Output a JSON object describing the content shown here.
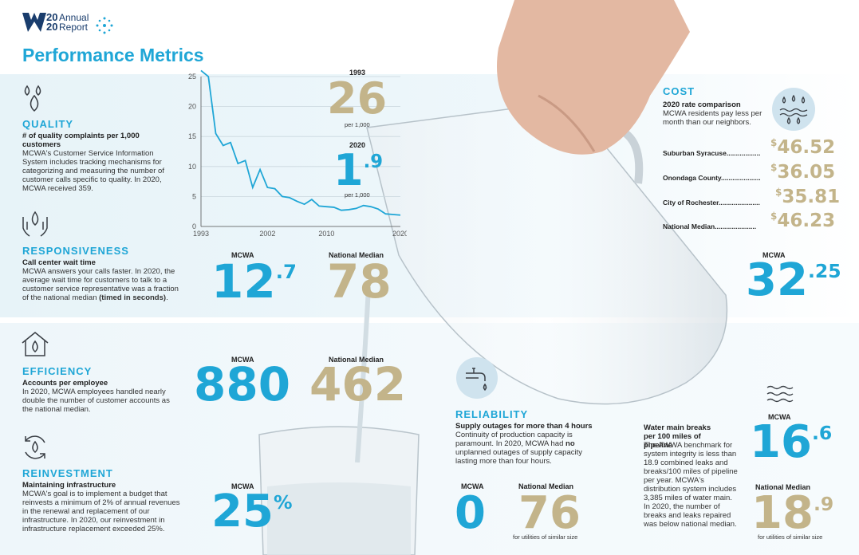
{
  "header": {
    "logo_year": "20\n20",
    "logo_text": "Annual\nReport",
    "title": "Performance Metrics"
  },
  "quality": {
    "heading": "QUALITY",
    "subheading": "# of quality complaints per 1,000 customers",
    "body": "MCWA's Customer Service Information System includes tracking mechanisms for categorizing and measuring the number of customer calls specific to quality. In 2020, MCWA received 359.",
    "year1": "1993",
    "value1": "26",
    "unit1": "per 1,000",
    "year2": "2020",
    "value2_int": "1",
    "value2_dec": ".9",
    "unit2": "per 1,000"
  },
  "responsiveness": {
    "heading": "RESPONSIVENESS",
    "subheading": "Call center wait time",
    "body_prefix": "MCWA answers your calls faster. In 2020, the average wait time for customers to talk to a customer service representative was a fraction of the national median ",
    "body_bold": "(timed in seconds)",
    "body_suffix": ".",
    "mcwa_label": "MCWA",
    "mcwa_int": "12",
    "mcwa_dec": ".7",
    "median_label": "National Median",
    "median_value": "78"
  },
  "efficiency": {
    "heading": "EFFICIENCY",
    "subheading": "Accounts per employee",
    "body": "In 2020, MCWA employees handled nearly double the number of customer accounts as the national median.",
    "mcwa_label": "MCWA",
    "mcwa_value": "880",
    "median_label": "National Median",
    "median_value": "462"
  },
  "reinvestment": {
    "heading": "REINVESTMENT",
    "subheading": "Maintaining infrastructure",
    "body": "MCWA's goal is to implement a budget that reinvests a minimum of 2% of annual revenues in the renewal and replacement of our infrastructure. In 2020, our reinvestment in infrastructure replacement exceeded 25%.",
    "mcwa_label": "MCWA",
    "mcwa_value": "25",
    "mcwa_pct": "%"
  },
  "reliability": {
    "heading": "RELIABILITY",
    "subheading": "Supply outages for more than 4 hours",
    "body_prefix": "Continuity of production capacity is paramount. In 2020, MCWA had ",
    "body_bold": "no",
    "body_suffix": " unplanned outages of supply capacity lasting more than four hours.",
    "mcwa_label": "MCWA",
    "mcwa_value": "0",
    "median_label": "National Median",
    "median_value": "76",
    "median_note": "for utilities of similar size"
  },
  "cost": {
    "heading": "COST",
    "subheading": "2020 rate comparison",
    "body": "MCWA residents pay less per month than our neighbors.",
    "rows": [
      {
        "name": "Suburban Syracuse",
        "dollar": "$",
        "value": "46.52"
      },
      {
        "name": "Onondaga County",
        "dollar": "$",
        "value": "36.05"
      },
      {
        "name": "City of Rochester",
        "dollar": "$",
        "value": "35.81"
      },
      {
        "name": "National Median",
        "dollar": "$",
        "value": "46.23"
      }
    ],
    "mcwa_label": "MCWA",
    "mcwa_int": "32",
    "mcwa_dec": ".25"
  },
  "mains": {
    "subheading": "Water main breaks per 100 miles of pipeline",
    "body": "The AWWA benchmark for system integrity is less than 18.9 combined leaks and breaks/100 miles of pipeline per year. MCWA's distribution system includes 3,385 miles of water main. In 2020, the number of breaks and leaks repaired was below national median.",
    "mcwa_label": "MCWA",
    "mcwa_int": "16",
    "mcwa_dec": ".6",
    "median_label": "National Median",
    "median_int": "18",
    "median_dec": ".9",
    "median_note": "for utilities of similar size"
  },
  "colors": {
    "accent_blue": "#1fa6d6",
    "gold": "#c3b48a",
    "navy": "#1a3d6d"
  },
  "chart_data": {
    "type": "line",
    "title": "",
    "xlabel": "",
    "ylabel": "",
    "xlim": [
      1993,
      2020
    ],
    "ylim": [
      0,
      25
    ],
    "xticks": [
      "1993",
      "2002",
      "2010",
      "2020"
    ],
    "yticks": [
      "0",
      "5",
      "10",
      "15",
      "20",
      "25"
    ],
    "grid": true,
    "series": [
      {
        "x": [
          1993,
          1994,
          1995,
          1996,
          1997,
          1998,
          1999,
          2000,
          2001,
          2002,
          2003,
          2004,
          2005,
          2006,
          2007,
          2008,
          2009,
          2010,
          2011,
          2012,
          2013,
          2014,
          2015,
          2016,
          2017,
          2018,
          2019,
          2020
        ],
        "values": [
          26,
          25,
          15.5,
          13.5,
          14,
          10.5,
          11,
          6.5,
          9.5,
          6.5,
          6.3,
          5,
          4.8,
          4.2,
          3.7,
          4.5,
          3.4,
          3.3,
          3.2,
          2.7,
          2.8,
          3,
          3.5,
          3.3,
          2.9,
          2.1,
          2.0,
          1.9
        ]
      }
    ]
  }
}
